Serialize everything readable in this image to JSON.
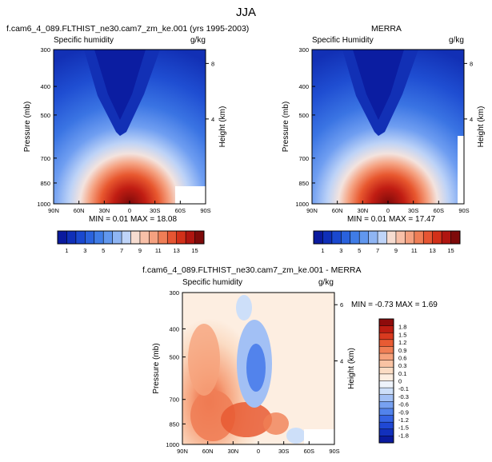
{
  "figure": {
    "season_title": "JJA"
  },
  "panels": {
    "model": {
      "title": "f.cam6_4_089.FLTHIST_ne30.cam7_zm_ke.001 (yrs 1995-2003)",
      "variable": "Specific humidity",
      "units": "g/kg",
      "stats": "MIN =  0.01  MAX = 18.08"
    },
    "obs": {
      "title": "MERRA",
      "variable": "Specific Humidity",
      "units": "g/kg",
      "stats": "MIN =  0.01  MAX = 17.47"
    },
    "diff": {
      "title": "f.cam6_4_089.FLTHIST_ne30.cam7_zm_ke.001 - MERRA",
      "variable": "Specific humidity",
      "units": "g/kg",
      "stats": "MIN = -0.73  MAX =  1.69"
    }
  },
  "chart_data": [
    {
      "type": "heatmap",
      "title": "f.cam6_4_089.FLTHIST_ne30.cam7_zm_ke.001 (yrs 1995-2003)",
      "variable": "Specific humidity",
      "units": "g/kg",
      "xlabel": "",
      "ylabel": "Pressure (mb)",
      "y2label": "Height (km)",
      "x_ticks": [
        "90N",
        "60N",
        "30N",
        "0",
        "30S",
        "60S",
        "90S"
      ],
      "y_ticks": [
        "300",
        "400",
        "500",
        "700",
        "850",
        "1000"
      ],
      "y2_ticks": [
        "8",
        "4"
      ],
      "min": 0.01,
      "max": 18.08
    },
    {
      "type": "heatmap",
      "title": "MERRA",
      "variable": "Specific Humidity",
      "units": "g/kg",
      "xlabel": "",
      "ylabel": "Pressure (mb)",
      "y2label": "Height (km)",
      "x_ticks": [
        "90N",
        "60N",
        "30N",
        "0",
        "30S",
        "60S",
        "90S"
      ],
      "y_ticks": [
        "300",
        "400",
        "500",
        "700",
        "850",
        "1000"
      ],
      "y2_ticks": [
        "8",
        "4"
      ],
      "min": 0.01,
      "max": 17.47
    },
    {
      "type": "heatmap",
      "title": "f.cam6_4_089.FLTHIST_ne30.cam7_zm_ke.001 - MERRA",
      "variable": "Specific humidity",
      "units": "g/kg",
      "xlabel": "",
      "ylabel": "Pressure (mb)",
      "y2label": "Height (km)",
      "x_ticks": [
        "90N",
        "60N",
        "30N",
        "0",
        "30S",
        "60S",
        "90S"
      ],
      "y_ticks": [
        "300",
        "400",
        "500",
        "700",
        "850",
        "1000"
      ],
      "y2_ticks": [
        "6",
        "4"
      ],
      "min": -0.73,
      "max": 1.69
    }
  ],
  "colorbars": {
    "humidity": {
      "colors": [
        "#0a1a9e",
        "#0f2fb8",
        "#1a48cf",
        "#2a62dd",
        "#3f7ce6",
        "#6197ee",
        "#8fb5f3",
        "#bfd4f8",
        "#f6dcd0",
        "#f8c0a8",
        "#f5a180",
        "#ef7e56",
        "#e65532",
        "#d23019",
        "#b01510",
        "#7e0a0a"
      ],
      "labels": [
        "1",
        "3",
        "5",
        "7",
        "9",
        "11",
        "13",
        "15"
      ]
    },
    "difference": {
      "colors": [
        "#0a1a9e",
        "#1230bd",
        "#2048d4",
        "#3563e3",
        "#5283ec",
        "#77a1f1",
        "#a2c0f5",
        "#cddff9",
        "#eef3fb",
        "#fdeee1",
        "#fbdcc4",
        "#f9c3a3",
        "#f6a27c",
        "#f07f55",
        "#e85b33",
        "#d93a1f",
        "#bd1d12",
        "#8e0b0b"
      ],
      "labels": [
        "1.8",
        "1.5",
        "1.2",
        "0.9",
        "0.6",
        "0.3",
        "0.1",
        "0",
        "-0.1",
        "-0.3",
        "-0.6",
        "-0.9",
        "-1.2",
        "-1.5",
        "-1.8"
      ]
    }
  }
}
